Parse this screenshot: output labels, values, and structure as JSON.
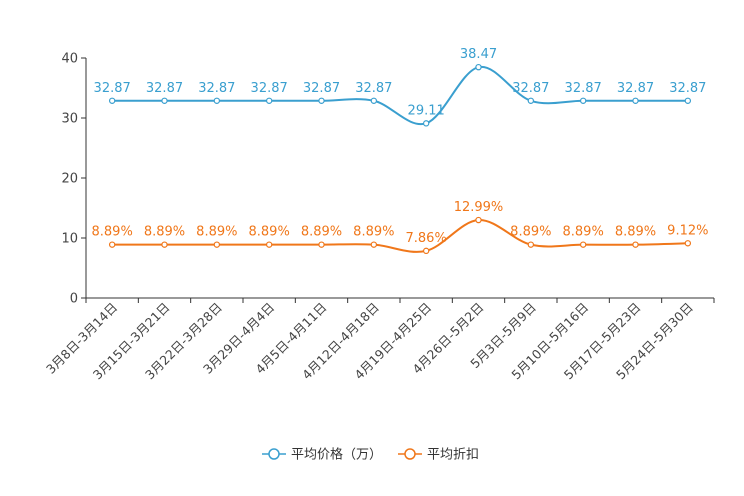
{
  "chart_data": {
    "type": "line",
    "title": "",
    "xlabel": "",
    "ylabel": "",
    "ylim": [
      0,
      40
    ],
    "yticks": [
      0,
      10,
      20,
      30,
      40
    ],
    "grid": false,
    "legend_position": "bottom-center",
    "categories": [
      "3月8日-3月14日",
      "3月15日-3月21日",
      "3月22日-3月28日",
      "3月29日-4月4日",
      "4月5日-4月11日",
      "4月12日-4月18日",
      "4月19日-4月25日",
      "4月26日-5月2日",
      "5月3日-5月9日",
      "5月10日-5月16日",
      "5月17日-5月23日",
      "5月24日-5月30日"
    ],
    "series": [
      {
        "name": "平均价格（万）",
        "color": "#3a9fcf",
        "values": [
          32.87,
          32.87,
          32.87,
          32.87,
          32.87,
          32.87,
          29.11,
          38.47,
          32.87,
          32.87,
          32.87,
          32.87
        ],
        "labels": [
          "32.87",
          "32.87",
          "32.87",
          "32.87",
          "32.87",
          "32.87",
          "29.11",
          "38.47",
          "32.87",
          "32.87",
          "32.87",
          "32.87"
        ]
      },
      {
        "name": "平均折扣",
        "color": "#f0771a",
        "values": [
          8.89,
          8.89,
          8.89,
          8.89,
          8.89,
          8.89,
          7.86,
          12.99,
          8.89,
          8.89,
          8.89,
          9.12
        ],
        "labels": [
          "8.89%",
          "8.89%",
          "8.89%",
          "8.89%",
          "8.89%",
          "8.89%",
          "7.86%",
          "12.99%",
          "8.89%",
          "8.89%",
          "8.89%",
          "9.12%"
        ]
      }
    ]
  }
}
